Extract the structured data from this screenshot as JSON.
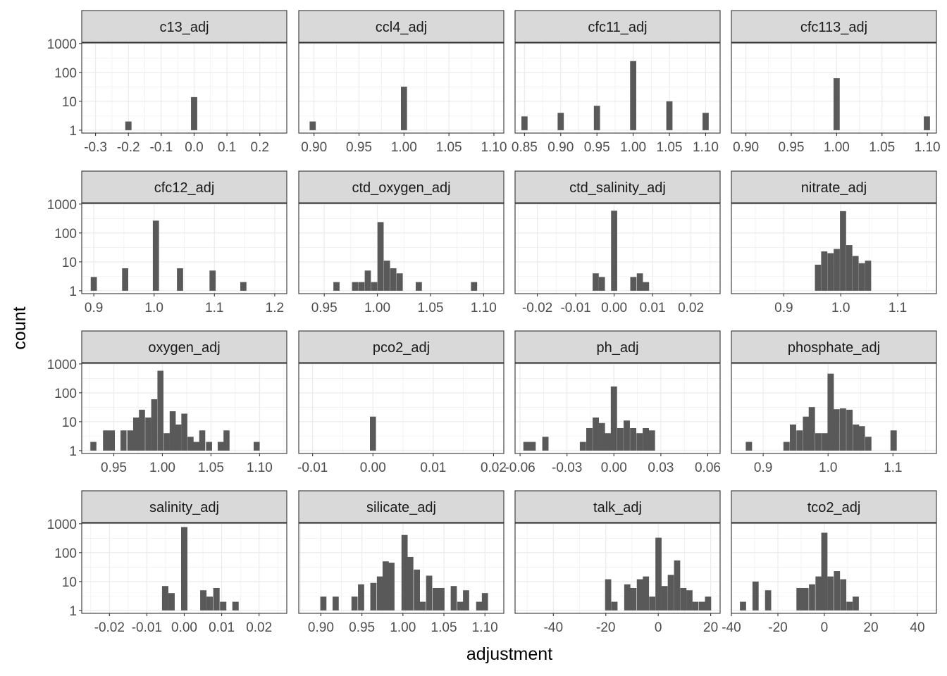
{
  "chart_data": {
    "type": "bar",
    "subtype": "faceted-histogram",
    "xlabel": "adjustment",
    "ylabel": "count",
    "y_scale": "log10",
    "y_breaks": [
      1,
      10,
      100,
      1000
    ],
    "y_break_labels": [
      "1",
      "10",
      "100",
      "1000"
    ],
    "ylim_log10": [
      -0.1,
      3.02
    ],
    "grid": true,
    "colors": {
      "bar": "#595959",
      "strip": "#d9d9d9",
      "grid": "#ebebeb",
      "border": "#333333"
    },
    "panels": [
      {
        "title": "c13_adj",
        "xlim": [
          -0.342,
          0.282
        ],
        "breaks": [
          -0.3,
          -0.2,
          -0.1,
          0.0,
          0.1,
          0.2
        ],
        "labels": [
          "-0.3",
          "-0.2",
          "-0.1",
          "0.0",
          "0.1",
          "0.2"
        ],
        "binwidth": 0.019,
        "bars": [
          [
            -0.2,
            2
          ],
          [
            0.0,
            14
          ]
        ]
      },
      {
        "title": "ccl4_adj",
        "xlim": [
          0.883,
          1.111
        ],
        "breaks": [
          0.9,
          0.95,
          1.0,
          1.05,
          1.1
        ],
        "labels": [
          "0.90",
          "0.95",
          "1.00",
          "1.05",
          "1.10"
        ],
        "binwidth": 0.0068,
        "bars": [
          [
            0.8985,
            2
          ],
          [
            1.0,
            32
          ]
        ]
      },
      {
        "title": "cfc11_adj",
        "xlim": [
          0.837,
          1.12
        ],
        "breaks": [
          0.85,
          0.9,
          0.95,
          1.0,
          1.05,
          1.1
        ],
        "labels": [
          "0.85",
          "0.90",
          "0.95",
          "1.00",
          "1.05",
          "1.10"
        ],
        "binwidth": 0.0085,
        "bars": [
          [
            0.85,
            3
          ],
          [
            0.9,
            4
          ],
          [
            0.95,
            7
          ],
          [
            1.0,
            247
          ],
          [
            1.05,
            10
          ],
          [
            1.1,
            4
          ]
        ]
      },
      {
        "title": "cfc113_adj",
        "xlim": [
          0.884,
          1.11
        ],
        "breaks": [
          0.9,
          0.95,
          1.0,
          1.05,
          1.1
        ],
        "labels": [
          "0.90",
          "0.95",
          "1.00",
          "1.05",
          "1.10"
        ],
        "binwidth": 0.0068,
        "bars": [
          [
            1.0,
            63
          ],
          [
            1.0995,
            3
          ]
        ]
      },
      {
        "title": "cfc12_adj",
        "xlim": [
          0.88,
          1.22
        ],
        "breaks": [
          0.9,
          1.0,
          1.1,
          1.2
        ],
        "labels": [
          "0.9",
          "1.0",
          "1.1",
          "1.2"
        ],
        "binwidth": 0.0102,
        "bars": [
          [
            0.9,
            3
          ],
          [
            0.952,
            6
          ],
          [
            1.003,
            267
          ],
          [
            1.043,
            6
          ],
          [
            1.097,
            5
          ],
          [
            1.148,
            2
          ]
        ]
      },
      {
        "title": "ctd_oxygen_adj",
        "xlim": [
          0.926,
          1.119
        ],
        "breaks": [
          0.95,
          1.0,
          1.05,
          1.1
        ],
        "labels": [
          "0.95",
          "1.00",
          "1.05",
          "1.10"
        ],
        "binwidth": 0.0058,
        "bars": [
          [
            0.9615,
            2
          ],
          [
            0.979,
            2
          ],
          [
            0.985,
            2
          ],
          [
            0.991,
            5
          ],
          [
            0.997,
            2
          ],
          [
            1.003,
            238
          ],
          [
            1.009,
            11
          ],
          [
            1.015,
            6
          ],
          [
            1.021,
            4
          ],
          [
            1.039,
            2
          ],
          [
            1.091,
            2
          ]
        ]
      },
      {
        "title": "ctd_salinity_adj",
        "xlim": [
          -0.0258,
          0.0276
        ],
        "breaks": [
          -0.02,
          -0.01,
          0.0,
          0.01,
          0.02
        ],
        "labels": [
          "-0.02",
          "-0.01",
          "0.00",
          "0.01",
          "0.02"
        ],
        "binwidth": 0.0016,
        "bars": [
          [
            -0.0048,
            4
          ],
          [
            -0.0032,
            3
          ],
          [
            0.0,
            590
          ],
          [
            0.005,
            3
          ],
          [
            0.0067,
            4
          ],
          [
            0.0083,
            2
          ]
        ]
      },
      {
        "title": "nitrate_adj",
        "xlim": [
          0.808,
          1.168
        ],
        "breaks": [
          0.9,
          1.0,
          1.1
        ],
        "labels": [
          "0.9",
          "1.0",
          "1.1"
        ],
        "binwidth": 0.0108,
        "bars": [
          [
            0.96,
            8
          ],
          [
            0.971,
            23
          ],
          [
            0.982,
            20
          ],
          [
            0.993,
            28
          ],
          [
            1.004,
            570
          ],
          [
            1.015,
            38
          ],
          [
            1.026,
            16
          ],
          [
            1.037,
            9
          ],
          [
            1.048,
            11
          ]
        ]
      },
      {
        "title": "oxygen_adj",
        "xlim": [
          0.917,
          1.128
        ],
        "breaks": [
          0.95,
          1.0,
          1.05,
          1.1
        ],
        "labels": [
          "0.95",
          "1.00",
          "1.05",
          "1.10"
        ],
        "binwidth": 0.0062,
        "bars": [
          [
            0.929,
            2
          ],
          [
            0.942,
            5
          ],
          [
            0.948,
            5
          ],
          [
            0.96,
            5
          ],
          [
            0.967,
            5
          ],
          [
            0.973,
            14
          ],
          [
            0.979,
            26
          ],
          [
            0.9855,
            14
          ],
          [
            0.9916,
            60
          ],
          [
            0.998,
            580
          ],
          [
            1.0045,
            4
          ],
          [
            1.0106,
            23
          ],
          [
            1.0164,
            8
          ],
          [
            1.0226,
            19
          ],
          [
            1.029,
            3
          ],
          [
            1.035,
            2
          ],
          [
            1.041,
            5
          ],
          [
            1.048,
            2
          ],
          [
            1.06,
            2
          ],
          [
            1.066,
            5
          ],
          [
            1.097,
            2
          ]
        ]
      },
      {
        "title": "pco2_adj",
        "xlim": [
          -0.0123,
          0.0217
        ],
        "breaks": [
          -0.01,
          0.0,
          0.01,
          0.02
        ],
        "labels": [
          "-0.01",
          "0.00",
          "0.01",
          "0.02"
        ],
        "binwidth": 0.001,
        "bars": [
          [
            0.0,
            15
          ]
        ]
      },
      {
        "title": "ph_adj",
        "xlim": [
          -0.0632,
          0.0679
        ],
        "breaks": [
          -0.06,
          -0.03,
          0.0,
          0.03,
          0.06
        ],
        "labels": [
          "-0.06",
          "-0.03",
          "0.00",
          "0.03",
          "0.06"
        ],
        "binwidth": 0.004,
        "bars": [
          [
            -0.0559,
            2
          ],
          [
            -0.052,
            2
          ],
          [
            -0.0438,
            3
          ],
          [
            -0.0198,
            2
          ],
          [
            -0.0157,
            6
          ],
          [
            -0.0116,
            14
          ],
          [
            -0.0077,
            9
          ],
          [
            -0.0038,
            4
          ],
          [
            0.0,
            166
          ],
          [
            0.0041,
            6
          ],
          [
            0.0082,
            11
          ],
          [
            0.0123,
            6
          ],
          [
            0.0164,
            4
          ],
          [
            0.0204,
            6
          ],
          [
            0.0243,
            5
          ]
        ]
      },
      {
        "title": "phosphate_adj",
        "xlim": [
          0.851,
          1.167
        ],
        "breaks": [
          0.9,
          1.0,
          1.1
        ],
        "labels": [
          "0.9",
          "1.0",
          "1.1"
        ],
        "binwidth": 0.0097,
        "bars": [
          [
            0.878,
            2
          ],
          [
            0.936,
            2
          ],
          [
            0.946,
            8
          ],
          [
            0.956,
            5
          ],
          [
            0.966,
            15
          ],
          [
            0.975,
            32
          ],
          [
            0.985,
            4
          ],
          [
            0.995,
            4
          ],
          [
            1.004,
            460
          ],
          [
            1.013,
            27
          ],
          [
            1.023,
            29
          ],
          [
            1.033,
            26
          ],
          [
            1.043,
            8
          ],
          [
            1.052,
            7
          ],
          [
            1.062,
            3
          ],
          [
            1.101,
            5
          ]
        ]
      },
      {
        "title": "salinity_adj",
        "xlim": [
          -0.0274,
          0.0274
        ],
        "breaks": [
          -0.02,
          -0.01,
          0.0,
          0.01,
          0.02
        ],
        "labels": [
          "-0.02",
          "-0.01",
          "0.00",
          "0.01",
          "0.02"
        ],
        "binwidth": 0.0017,
        "bars": [
          [
            -0.0051,
            7
          ],
          [
            -0.0034,
            4
          ],
          [
            0.0,
            770
          ],
          [
            0.0051,
            5
          ],
          [
            0.0068,
            3
          ],
          [
            0.0086,
            6
          ],
          [
            0.0104,
            2
          ],
          [
            0.0137,
            2
          ]
        ]
      },
      {
        "title": "silicate_adj",
        "xlim": [
          0.873,
          1.123
        ],
        "breaks": [
          0.9,
          0.95,
          1.0,
          1.05,
          1.1
        ],
        "labels": [
          "0.90",
          "0.95",
          "1.00",
          "1.05",
          "1.10"
        ],
        "binwidth": 0.0075,
        "bars": [
          [
            0.903,
            3
          ],
          [
            0.918,
            3
          ],
          [
            0.941,
            3
          ],
          [
            0.949,
            8
          ],
          [
            0.964,
            9
          ],
          [
            0.972,
            15
          ],
          [
            0.979,
            50
          ],
          [
            0.986,
            45
          ],
          [
            1.002,
            410
          ],
          [
            1.009,
            71
          ],
          [
            1.017,
            26
          ],
          [
            1.024,
            2
          ],
          [
            1.032,
            16
          ],
          [
            1.04,
            6
          ],
          [
            1.047,
            6
          ],
          [
            1.062,
            7
          ],
          [
            1.07,
            2
          ],
          [
            1.077,
            5
          ],
          [
            1.093,
            2
          ],
          [
            1.1,
            4
          ]
        ]
      },
      {
        "title": "talk_adj",
        "xlim": [
          -54.6,
          23.6
        ],
        "breaks": [
          -40,
          -20,
          0,
          20
        ],
        "labels": [
          "-40",
          "-20",
          "0",
          "20"
        ],
        "binwidth": 2.35,
        "bars": [
          [
            -19.1,
            12
          ],
          [
            -16.7,
            2
          ],
          [
            -11.8,
            8
          ],
          [
            -9.5,
            6
          ],
          [
            -7.0,
            12
          ],
          [
            -4.7,
            15
          ],
          [
            -2.3,
            3
          ],
          [
            0.1,
            330
          ],
          [
            2.4,
            7
          ],
          [
            4.8,
            17
          ],
          [
            7.2,
            54
          ],
          [
            9.6,
            6
          ],
          [
            11.9,
            5
          ],
          [
            14.2,
            2
          ],
          [
            16.7,
            2
          ],
          [
            19.0,
            3
          ]
        ]
      },
      {
        "title": "tco2_adj",
        "xlim": [
          -40.0,
          48.2
        ],
        "breaks": [
          -40,
          -20,
          0,
          20,
          40
        ],
        "labels": [
          "-40",
          "-20",
          "0",
          "20",
          "40"
        ],
        "binwidth": 2.65,
        "bars": [
          [
            -35,
            2
          ],
          [
            -29.6,
            10
          ],
          [
            -24.2,
            5
          ],
          [
            -10.7,
            6
          ],
          [
            -8.1,
            6
          ],
          [
            -5.3,
            8
          ],
          [
            -2.5,
            15
          ],
          [
            0.0,
            490
          ],
          [
            2.6,
            15
          ],
          [
            5.4,
            23
          ],
          [
            8.1,
            12
          ],
          [
            10.8,
            2
          ],
          [
            13.5,
            3
          ]
        ]
      }
    ]
  }
}
